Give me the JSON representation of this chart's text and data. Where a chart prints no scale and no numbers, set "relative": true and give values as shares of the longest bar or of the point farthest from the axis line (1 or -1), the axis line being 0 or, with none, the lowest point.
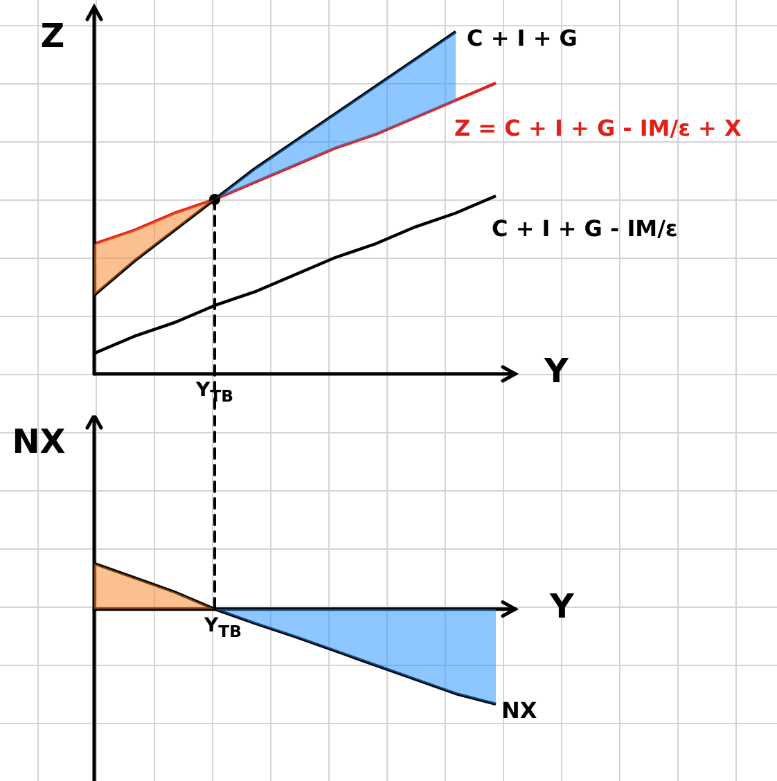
{
  "chart_data": [
    {
      "type": "line",
      "relative": true,
      "xlabel": "Y",
      "ylabel": "Z",
      "categories": [
        null,
        null,
        null,
        null,
        null,
        null,
        null,
        null,
        null,
        null,
        null
      ],
      "annotations": [
        {
          "text": "Y$_{TB}$",
          "y": 0.51
        }
      ],
      "series": [
        {
          "type": "line",
          "name": "C + I + G",
          "color": "#000000",
          "values": [
            0.23,
            0.33,
            0.42,
            0.51,
            0.6,
            0.68,
            0.76,
            0.84,
            0.92,
            1.0,
            null
          ]
        },
        {
          "type": "line",
          "name": "Z = C + I + G - IM/ε + X",
          "color": "#e0201b",
          "values": [
            0.38,
            0.42,
            0.47,
            0.51,
            0.56,
            0.61,
            0.66,
            0.7,
            0.75,
            0.8,
            0.85
          ]
        },
        {
          "type": "line",
          "name": "C + I + G - IM/ε",
          "color": "#000000",
          "values": [
            0.06,
            0.11,
            0.15,
            0.2,
            0.24,
            0.29,
            0.34,
            0.38,
            0.43,
            0.47,
            0.52
          ]
        }
      ]
    },
    {
      "type": "line",
      "relative": true,
      "xlabel": "Y",
      "ylabel": "NX",
      "categories": [
        null,
        null,
        null,
        null,
        null,
        null,
        null,
        null,
        null,
        null,
        null
      ],
      "annotations": [
        {
          "text": "Y$_{TB}$",
          "y": 0
        }
      ],
      "series": [
        {
          "type": "line",
          "name": "NX",
          "color": "#000000",
          "values": [
            0.48,
            0.33,
            0.18,
            0,
            -0.15,
            -0.29,
            -0.44,
            -0.59,
            -0.74,
            -0.89,
            -1.0
          ]
        }
      ]
    }
  ]
}
